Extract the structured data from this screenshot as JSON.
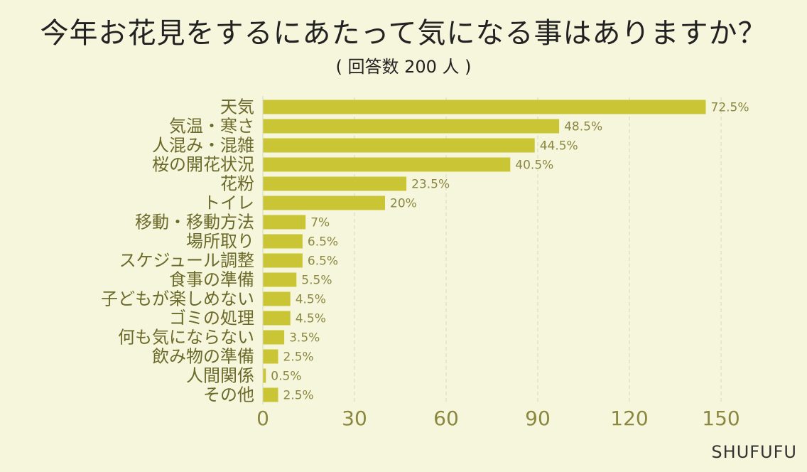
{
  "title": "今年お花見をするにあたって気になる事はありますか？",
  "subtitle": "( 回答数 200 人 )",
  "watermark": "SHUFUFU",
  "colors": {
    "bar": "#cac534",
    "background": "#f6f6dc",
    "axis_text": "#8a8740",
    "category_text": "#6b6a2a",
    "grid": "#d8d8c0"
  },
  "chart_data": {
    "type": "bar",
    "orientation": "horizontal",
    "categories": [
      "天気",
      "気温・寒さ",
      "人混み・混雑",
      "桜の開花状況",
      "花粉",
      "トイレ",
      "移動・移動方法",
      "場所取り",
      "スケジュール調整",
      "食事の準備",
      "子どもが楽しめない",
      "ゴミの処理",
      "何も気にならない",
      "飲み物の準備",
      "人間関係",
      "その他"
    ],
    "values": [
      145,
      97,
      89,
      81,
      47,
      40,
      14,
      13,
      13,
      11,
      9,
      9,
      7,
      5,
      1,
      5
    ],
    "data_labels": [
      "72.5%",
      "48.5%",
      "44.5%",
      "40.5%",
      "23.5%",
      "20%",
      "7%",
      "6.5%",
      "6.5%",
      "5.5%",
      "4.5%",
      "4.5%",
      "3.5%",
      "2.5%",
      "0.5%",
      "2.5%"
    ],
    "xlim": [
      0,
      150
    ],
    "xticks": [
      0,
      30,
      60,
      90,
      120,
      150
    ],
    "grid": "vertical dashed",
    "title": "今年お花見をするにあたって気になる事はありますか？",
    "xlabel": "",
    "ylabel": ""
  }
}
